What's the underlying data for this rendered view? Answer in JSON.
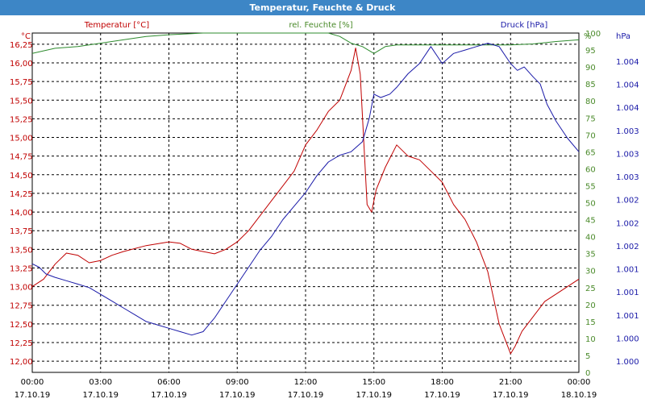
{
  "window": {
    "title": "Temperatur, Feuchte & Druck"
  },
  "legend": {
    "temperature": "Temperatur [°C]",
    "humidity": "rel. Feuchte [%]",
    "pressure": "Druck [hPa]"
  },
  "axes": {
    "left_unit": "°C",
    "right_unit_humidity": "%",
    "right_unit_pressure": "hPa"
  },
  "colors": {
    "temperature": "#c00000",
    "humidity": "#2e8b2e",
    "pressure": "#1a1aa8",
    "title_bar": "#3d86c6",
    "grid": "#000000"
  },
  "chart_data": {
    "type": "line",
    "title": "Temperatur, Feuchte & Druck",
    "x_ticks": [
      {
        "time": "00:00",
        "date": "17.10.19"
      },
      {
        "time": "03:00",
        "date": "17.10.19"
      },
      {
        "time": "06:00",
        "date": "17.10.19"
      },
      {
        "time": "09:00",
        "date": "17.10.19"
      },
      {
        "time": "12:00",
        "date": "17.10.19"
      },
      {
        "time": "15:00",
        "date": "17.10.19"
      },
      {
        "time": "18:00",
        "date": "17.10.19"
      },
      {
        "time": "21:00",
        "date": "17.10.19"
      },
      {
        "time": "00:00",
        "date": "18.10.19"
      }
    ],
    "x_range_hours": [
      0,
      24
    ],
    "grid": true,
    "y_axes": {
      "temperature": {
        "range": [
          11.85,
          16.4
        ],
        "ticks": [
          "12,00",
          "12,25",
          "12,50",
          "12,75",
          "13,00",
          "13,25",
          "13,50",
          "13,75",
          "14,00",
          "14,25",
          "14,50",
          "14,75",
          "15,00",
          "15,25",
          "15,50",
          "15,75",
          "16,00",
          "16,25"
        ]
      },
      "humidity": {
        "range": [
          0,
          100
        ],
        "ticks": [
          "0",
          "5",
          "10",
          "15",
          "20",
          "25",
          "30",
          "35",
          "40",
          "45",
          "50",
          "55",
          "60",
          "65",
          "70",
          "75",
          "80",
          "85",
          "90",
          "95",
          "100"
        ]
      },
      "pressure": {
        "range": [
          999.5,
          1004.5
        ],
        "ticks": [
          "1.000",
          "1.000",
          "1.001",
          "1.001",
          "1.001",
          "1.002",
          "1.002",
          "1.002",
          "1.003",
          "1.003",
          "1.003",
          "1.004",
          "1.004",
          "1.004"
        ]
      }
    },
    "series": [
      {
        "name": "Temperatur [°C]",
        "axis": "temperature",
        "x": [
          0,
          0.5,
          1,
          1.5,
          2,
          2.5,
          3,
          3.5,
          4,
          5,
          6,
          6.5,
          7,
          8,
          8.5,
          9,
          9.5,
          10,
          10.5,
          11,
          11.5,
          12,
          12.5,
          13,
          13.5,
          14,
          14.2,
          14.4,
          14.7,
          14.9,
          15.1,
          15.5,
          16,
          16.5,
          17,
          17.5,
          18,
          18.5,
          19,
          19.5,
          20,
          20.5,
          21,
          21.2,
          21.5,
          22,
          22.5,
          23,
          23.5,
          24
        ],
        "values": [
          13.0,
          13.1,
          13.3,
          13.45,
          13.42,
          13.32,
          13.35,
          13.42,
          13.47,
          13.55,
          13.6,
          13.58,
          13.5,
          13.44,
          13.5,
          13.6,
          13.75,
          13.95,
          14.15,
          14.35,
          14.55,
          14.9,
          15.1,
          15.35,
          15.5,
          15.9,
          16.2,
          15.85,
          14.1,
          14.0,
          14.3,
          14.6,
          14.9,
          14.75,
          14.7,
          14.55,
          14.4,
          14.1,
          13.9,
          13.6,
          13.2,
          12.5,
          12.1,
          12.2,
          12.4,
          12.6,
          12.8,
          12.9,
          13.0,
          13.1
        ]
      },
      {
        "name": "rel. Feuchte [%]",
        "axis": "humidity",
        "x": [
          0,
          1,
          2,
          3,
          4,
          5,
          6,
          7,
          7.5,
          8,
          9,
          10,
          11,
          12,
          13,
          13.5,
          14,
          14.5,
          15,
          15.5,
          16,
          17,
          18,
          19,
          20,
          21,
          22,
          23,
          24
        ],
        "values": [
          94,
          95.5,
          96,
          97,
          98,
          99,
          99.5,
          99.8,
          100,
          100,
          100,
          100,
          100,
          100,
          100,
          99,
          97,
          96,
          94,
          96,
          96.5,
          96.5,
          96.5,
          96.5,
          96.5,
          96.5,
          96.8,
          97.5,
          98
        ]
      },
      {
        "name": "Druck [hPa]",
        "axis": "pressure",
        "x": [
          0,
          0.3,
          0.6,
          1,
          1.5,
          2,
          2.5,
          3,
          3.5,
          4,
          4.5,
          5,
          5.5,
          6,
          6.5,
          7,
          7.5,
          8,
          8.5,
          9,
          9.5,
          10,
          10.5,
          11,
          11.5,
          12,
          12.5,
          13,
          13.5,
          14,
          14.5,
          14.8,
          15,
          15.3,
          15.7,
          16,
          16.5,
          17,
          17.5,
          17.8,
          18,
          18.5,
          19,
          19.5,
          20,
          20.5,
          21,
          21.3,
          21.6,
          22,
          22.3,
          22.6,
          23,
          23.5,
          24
        ],
        "values": [
          1001.1,
          1001.05,
          1000.95,
          1000.9,
          1000.85,
          1000.8,
          1000.75,
          1000.65,
          1000.55,
          1000.45,
          1000.35,
          1000.25,
          1000.2,
          1000.15,
          1000.1,
          1000.05,
          1000.1,
          1000.3,
          1000.55,
          1000.8,
          1001.05,
          1001.3,
          1001.5,
          1001.75,
          1001.95,
          1002.15,
          1002.4,
          1002.6,
          1002.7,
          1002.75,
          1002.9,
          1003.25,
          1003.6,
          1003.55,
          1003.6,
          1003.7,
          1003.9,
          1004.05,
          1004.3,
          1004.15,
          1004.05,
          1004.2,
          1004.25,
          1004.3,
          1004.35,
          1004.3,
          1004.05,
          1003.95,
          1004.0,
          1003.85,
          1003.75,
          1003.45,
          1003.2,
          1002.95,
          1002.75
        ]
      }
    ]
  }
}
